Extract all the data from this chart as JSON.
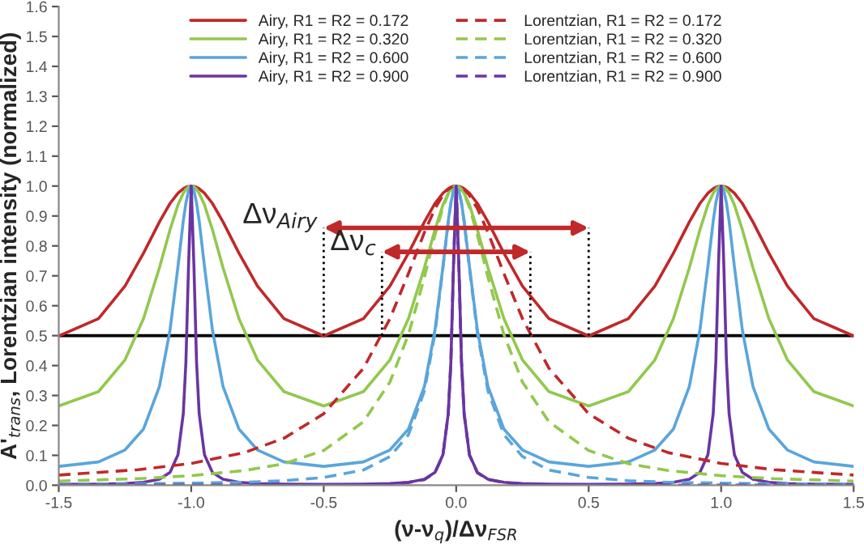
{
  "chart_data": {
    "type": "line",
    "xlabel": "(ν-ν$_{q}$)/Δν$_{FSR}$",
    "ylabel": "A'$_{trans}$, Lorentzian intensity (normalized)",
    "x": [
      -1.5,
      -1.35,
      -1.25,
      -1.18,
      -1.12,
      -1.08,
      -1.05,
      -1.03,
      -1.02,
      -1.01,
      -1,
      -0.99,
      -0.98,
      -0.97,
      -0.95,
      -0.92,
      -0.88,
      -0.82,
      -0.75,
      -0.65,
      -0.5,
      -0.35,
      -0.25,
      -0.18,
      -0.12,
      -0.08,
      -0.05,
      -0.03,
      -0.02,
      -0.01,
      0,
      0.01,
      0.02,
      0.03,
      0.05,
      0.08,
      0.12,
      0.18,
      0.25,
      0.35,
      0.5,
      0.65,
      0.75,
      0.82,
      0.88,
      0.92,
      0.95,
      0.97,
      0.98,
      0.99,
      1,
      1.01,
      1.02,
      1.03,
      1.05,
      1.08,
      1.12,
      1.18,
      1.25,
      1.35,
      1.5
    ],
    "series": [
      {
        "name": "Airy, R1 = R2 = 0.172",
        "color": "#c0282a",
        "line_style": "solid",
        "values": [
          0.499,
          0.557,
          0.666,
          0.776,
          0.88,
          0.942,
          0.976,
          0.991,
          0.996,
          0.999,
          1,
          0.999,
          0.996,
          0.991,
          0.976,
          0.942,
          0.88,
          0.776,
          0.666,
          0.557,
          0.499,
          0.557,
          0.666,
          0.776,
          0.88,
          0.942,
          0.976,
          0.991,
          0.996,
          0.999,
          1,
          0.999,
          0.996,
          0.991,
          0.976,
          0.942,
          0.88,
          0.776,
          0.666,
          0.557,
          0.499,
          0.557,
          0.666,
          0.776,
          0.88,
          0.942,
          0.976,
          0.991,
          0.996,
          0.999,
          1,
          0.999,
          0.996,
          0.991,
          0.976,
          0.942,
          0.88,
          0.776,
          0.666,
          0.557,
          0.499
        ]
      },
      {
        "name": "Airy, R1 = R2 = 0.320",
        "color": "#92c84e",
        "line_style": "solid",
        "values": [
          0.265,
          0.313,
          0.419,
          0.557,
          0.727,
          0.854,
          0.937,
          0.976,
          0.989,
          0.997,
          1,
          0.997,
          0.989,
          0.976,
          0.937,
          0.854,
          0.727,
          0.557,
          0.419,
          0.313,
          0.265,
          0.313,
          0.419,
          0.557,
          0.727,
          0.854,
          0.937,
          0.976,
          0.989,
          0.997,
          1,
          0.997,
          0.989,
          0.976,
          0.937,
          0.854,
          0.727,
          0.557,
          0.419,
          0.313,
          0.265,
          0.313,
          0.419,
          0.557,
          0.727,
          0.854,
          0.937,
          0.976,
          0.989,
          0.997,
          1,
          0.997,
          0.989,
          0.976,
          0.937,
          0.854,
          0.727,
          0.557,
          0.419,
          0.313,
          0.265
        ]
      },
      {
        "name": "Airy, R1 = R2 = 0.600",
        "color": "#5aa5dc",
        "line_style": "solid",
        "values": [
          0.063,
          0.078,
          0.118,
          0.188,
          0.33,
          0.519,
          0.731,
          0.883,
          0.944,
          0.985,
          1,
          0.985,
          0.944,
          0.883,
          0.731,
          0.519,
          0.33,
          0.188,
          0.118,
          0.078,
          0.063,
          0.078,
          0.118,
          0.188,
          0.33,
          0.519,
          0.731,
          0.883,
          0.944,
          0.985,
          1,
          0.985,
          0.944,
          0.883,
          0.731,
          0.519,
          0.33,
          0.188,
          0.118,
          0.078,
          0.063,
          0.078,
          0.118,
          0.188,
          0.33,
          0.519,
          0.731,
          0.883,
          0.944,
          0.985,
          1,
          0.985,
          0.944,
          0.883,
          0.731,
          0.519,
          0.33,
          0.188,
          0.118,
          0.078,
          0.063
        ]
      },
      {
        "name": "Airy, R1 = R2 = 0.900",
        "color": "#6a35a2",
        "line_style": "solid",
        "values": [
          0.003,
          0.004,
          0.006,
          0.01,
          0.02,
          0.043,
          0.102,
          0.239,
          0.413,
          0.738,
          1,
          0.738,
          0.413,
          0.239,
          0.102,
          0.043,
          0.02,
          0.01,
          0.006,
          0.004,
          0.003,
          0.004,
          0.006,
          0.01,
          0.02,
          0.043,
          0.102,
          0.239,
          0.413,
          0.738,
          1,
          0.738,
          0.413,
          0.239,
          0.102,
          0.043,
          0.02,
          0.01,
          0.006,
          0.004,
          0.003,
          0.004,
          0.006,
          0.01,
          0.02,
          0.043,
          0.102,
          0.239,
          0.413,
          0.738,
          1,
          0.738,
          0.413,
          0.239,
          0.102,
          0.043,
          0.02,
          0.01,
          0.006,
          0.004,
          0.003
        ]
      },
      {
        "name": "Lorentzian, R1 = R2 = 0.172",
        "color": "#c0282a",
        "line_style": "dashed",
        "x": [
          -1.5,
          -1.2,
          -1,
          -0.8,
          -0.65,
          -0.5,
          -0.35,
          -0.25,
          -0.18,
          -0.12,
          -0.08,
          -0.05,
          -0.03,
          -0.02,
          -0.01,
          0,
          0.01,
          0.02,
          0.03,
          0.05,
          0.08,
          0.12,
          0.18,
          0.25,
          0.35,
          0.5,
          0.65,
          0.8,
          1,
          1.2,
          1.5
        ],
        "values": [
          0.034,
          0.052,
          0.073,
          0.109,
          0.157,
          0.239,
          0.391,
          0.557,
          0.708,
          0.845,
          0.925,
          0.969,
          0.989,
          0.995,
          0.999,
          1,
          0.999,
          0.995,
          0.989,
          0.969,
          0.925,
          0.845,
          0.708,
          0.557,
          0.391,
          0.239,
          0.157,
          0.109,
          0.073,
          0.052,
          0.034
        ]
      },
      {
        "name": "Lorentzian, R1 = R2 = 0.320",
        "color": "#92c84e",
        "line_style": "dashed",
        "x": [
          -1.5,
          -1.2,
          -1,
          -0.8,
          -0.65,
          -0.5,
          -0.35,
          -0.25,
          -0.18,
          -0.12,
          -0.08,
          -0.05,
          -0.03,
          -0.02,
          -0.01,
          0,
          0.01,
          0.02,
          0.03,
          0.05,
          0.08,
          0.12,
          0.18,
          0.25,
          0.35,
          0.5,
          0.65,
          0.8,
          1,
          1.2,
          1.5
        ],
        "values": [
          0.014,
          0.022,
          0.032,
          0.049,
          0.072,
          0.116,
          0.212,
          0.345,
          0.504,
          0.695,
          0.837,
          0.929,
          0.973,
          0.988,
          0.997,
          1,
          0.997,
          0.988,
          0.973,
          0.929,
          0.837,
          0.695,
          0.504,
          0.345,
          0.212,
          0.116,
          0.072,
          0.049,
          0.032,
          0.022,
          0.014
        ]
      },
      {
        "name": "Lorentzian, R1 = R2 = 0.600",
        "color": "#5aa5dc",
        "line_style": "dashed",
        "x": [
          -1.5,
          -1.2,
          -1,
          -0.8,
          -0.65,
          -0.5,
          -0.35,
          -0.25,
          -0.18,
          -0.12,
          -0.08,
          -0.05,
          -0.03,
          -0.02,
          -0.01,
          0,
          0.01,
          0.02,
          0.03,
          0.05,
          0.08,
          0.12,
          0.18,
          0.25,
          0.35,
          0.5,
          0.65,
          0.8,
          1,
          1.2,
          1.5
        ],
        "values": [
          0.003,
          0.005,
          0.007,
          0.01,
          0.015,
          0.026,
          0.051,
          0.096,
          0.169,
          0.315,
          0.508,
          0.726,
          0.88,
          0.943,
          0.985,
          1,
          0.985,
          0.943,
          0.88,
          0.726,
          0.508,
          0.315,
          0.169,
          0.096,
          0.051,
          0.026,
          0.015,
          0.01,
          0.007,
          0.005,
          0.003
        ]
      },
      {
        "name": "Lorentzian, R1 = R2 = 0.900",
        "color": "#6a35a2",
        "line_style": "dashed",
        "x": [
          -1.5,
          -1.2,
          -1,
          -0.8,
          -0.65,
          -0.5,
          -0.35,
          -0.25,
          -0.18,
          -0.12,
          -0.08,
          -0.05,
          -0.03,
          -0.02,
          -0.01,
          0,
          0.01,
          0.02,
          0.03,
          0.05,
          0.08,
          0.12,
          0.18,
          0.25,
          0.35,
          0.5,
          0.65,
          0.8,
          1,
          1.2,
          1.5
        ],
        "values": [
          0.0,
          0.0,
          0.0,
          0.0,
          0.001,
          0.001,
          0.002,
          0.004,
          0.009,
          0.019,
          0.042,
          0.101,
          0.238,
          0.413,
          0.738,
          1,
          0.738,
          0.413,
          0.238,
          0.101,
          0.042,
          0.019,
          0.009,
          0.004,
          0.002,
          0.001,
          0.001,
          0.0,
          0.0,
          0.0,
          0.0
        ]
      },
      {
        "color": "#000000",
        "line_style": "dotted",
        "x": [
          -0.5,
          -0.5,
          null,
          0.5,
          0.5
        ],
        "values": [
          0.5,
          0.86,
          null,
          0.5,
          0.86
        ]
      },
      {
        "color": "#000000",
        "line_style": "dotted",
        "x": [
          -0.28,
          -0.28,
          null,
          0.28,
          0.28
        ],
        "values": [
          0.5,
          0.78,
          null,
          0.5,
          0.78
        ]
      }
    ],
    "xlim": [
      -1.5,
      1.5
    ],
    "xticks": [
      -1.5,
      {
        "value": -1,
        "label": "-1.0"
      },
      -0.5,
      {
        "value": 0,
        "label": "0.0"
      },
      0.5,
      {
        "value": 1,
        "label": "1.0"
      },
      1.5
    ],
    "ylim": [
      0,
      1.6
    ],
    "yticks": [
      {
        "value": 0,
        "label": "0.0"
      },
      0.1,
      0.2,
      0.3,
      0.4,
      0.5,
      0.6,
      0.7,
      0.8,
      0.9,
      {
        "value": 1,
        "label": "1.0"
      },
      1.1,
      1.2,
      1.3,
      1.4,
      1.5,
      1.6
    ],
    "ref_lines": [
      {
        "axis": "y",
        "value": 0.5,
        "color": "#000000",
        "line_style": "solid"
      }
    ],
    "annotations": [
      {
        "text": "Δν$_{Airy}$",
        "x": -0.5,
        "y": 0.86
      },
      {
        "text": "Δν$_{c}$",
        "x": -0.28,
        "y": 0.78
      }
    ],
    "legend": "top",
    "grid": false,
    "marker": "none"
  }
}
